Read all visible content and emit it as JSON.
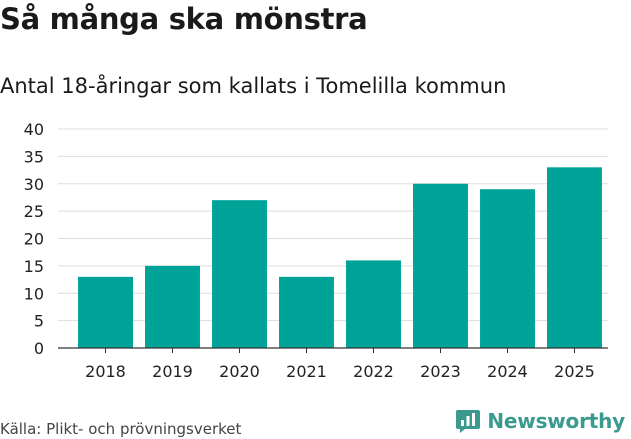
{
  "title": "Så många ska mönstra",
  "subtitle": "Antal 18-åringar som kallats i Tomelilla kommun",
  "source": "Källa: Plikt- och prövningsverket",
  "brand": "Newsworthy",
  "colors": {
    "bar": "#00a398",
    "grid": "#dddddd",
    "axis": "#333333",
    "brand": "#3a9a8e"
  },
  "chart_data": {
    "type": "bar",
    "title": "Så många ska mönstra",
    "subtitle": "Antal 18-åringar som kallats i Tomelilla kommun",
    "xlabel": "",
    "ylabel": "",
    "categories": [
      "2018",
      "2019",
      "2020",
      "2021",
      "2022",
      "2023",
      "2024",
      "2025"
    ],
    "values": [
      13,
      15,
      27,
      13,
      16,
      30,
      29,
      33
    ],
    "ylim": [
      0,
      40
    ],
    "yticks": [
      0,
      5,
      10,
      15,
      20,
      25,
      30,
      35,
      40
    ],
    "grid": true
  }
}
